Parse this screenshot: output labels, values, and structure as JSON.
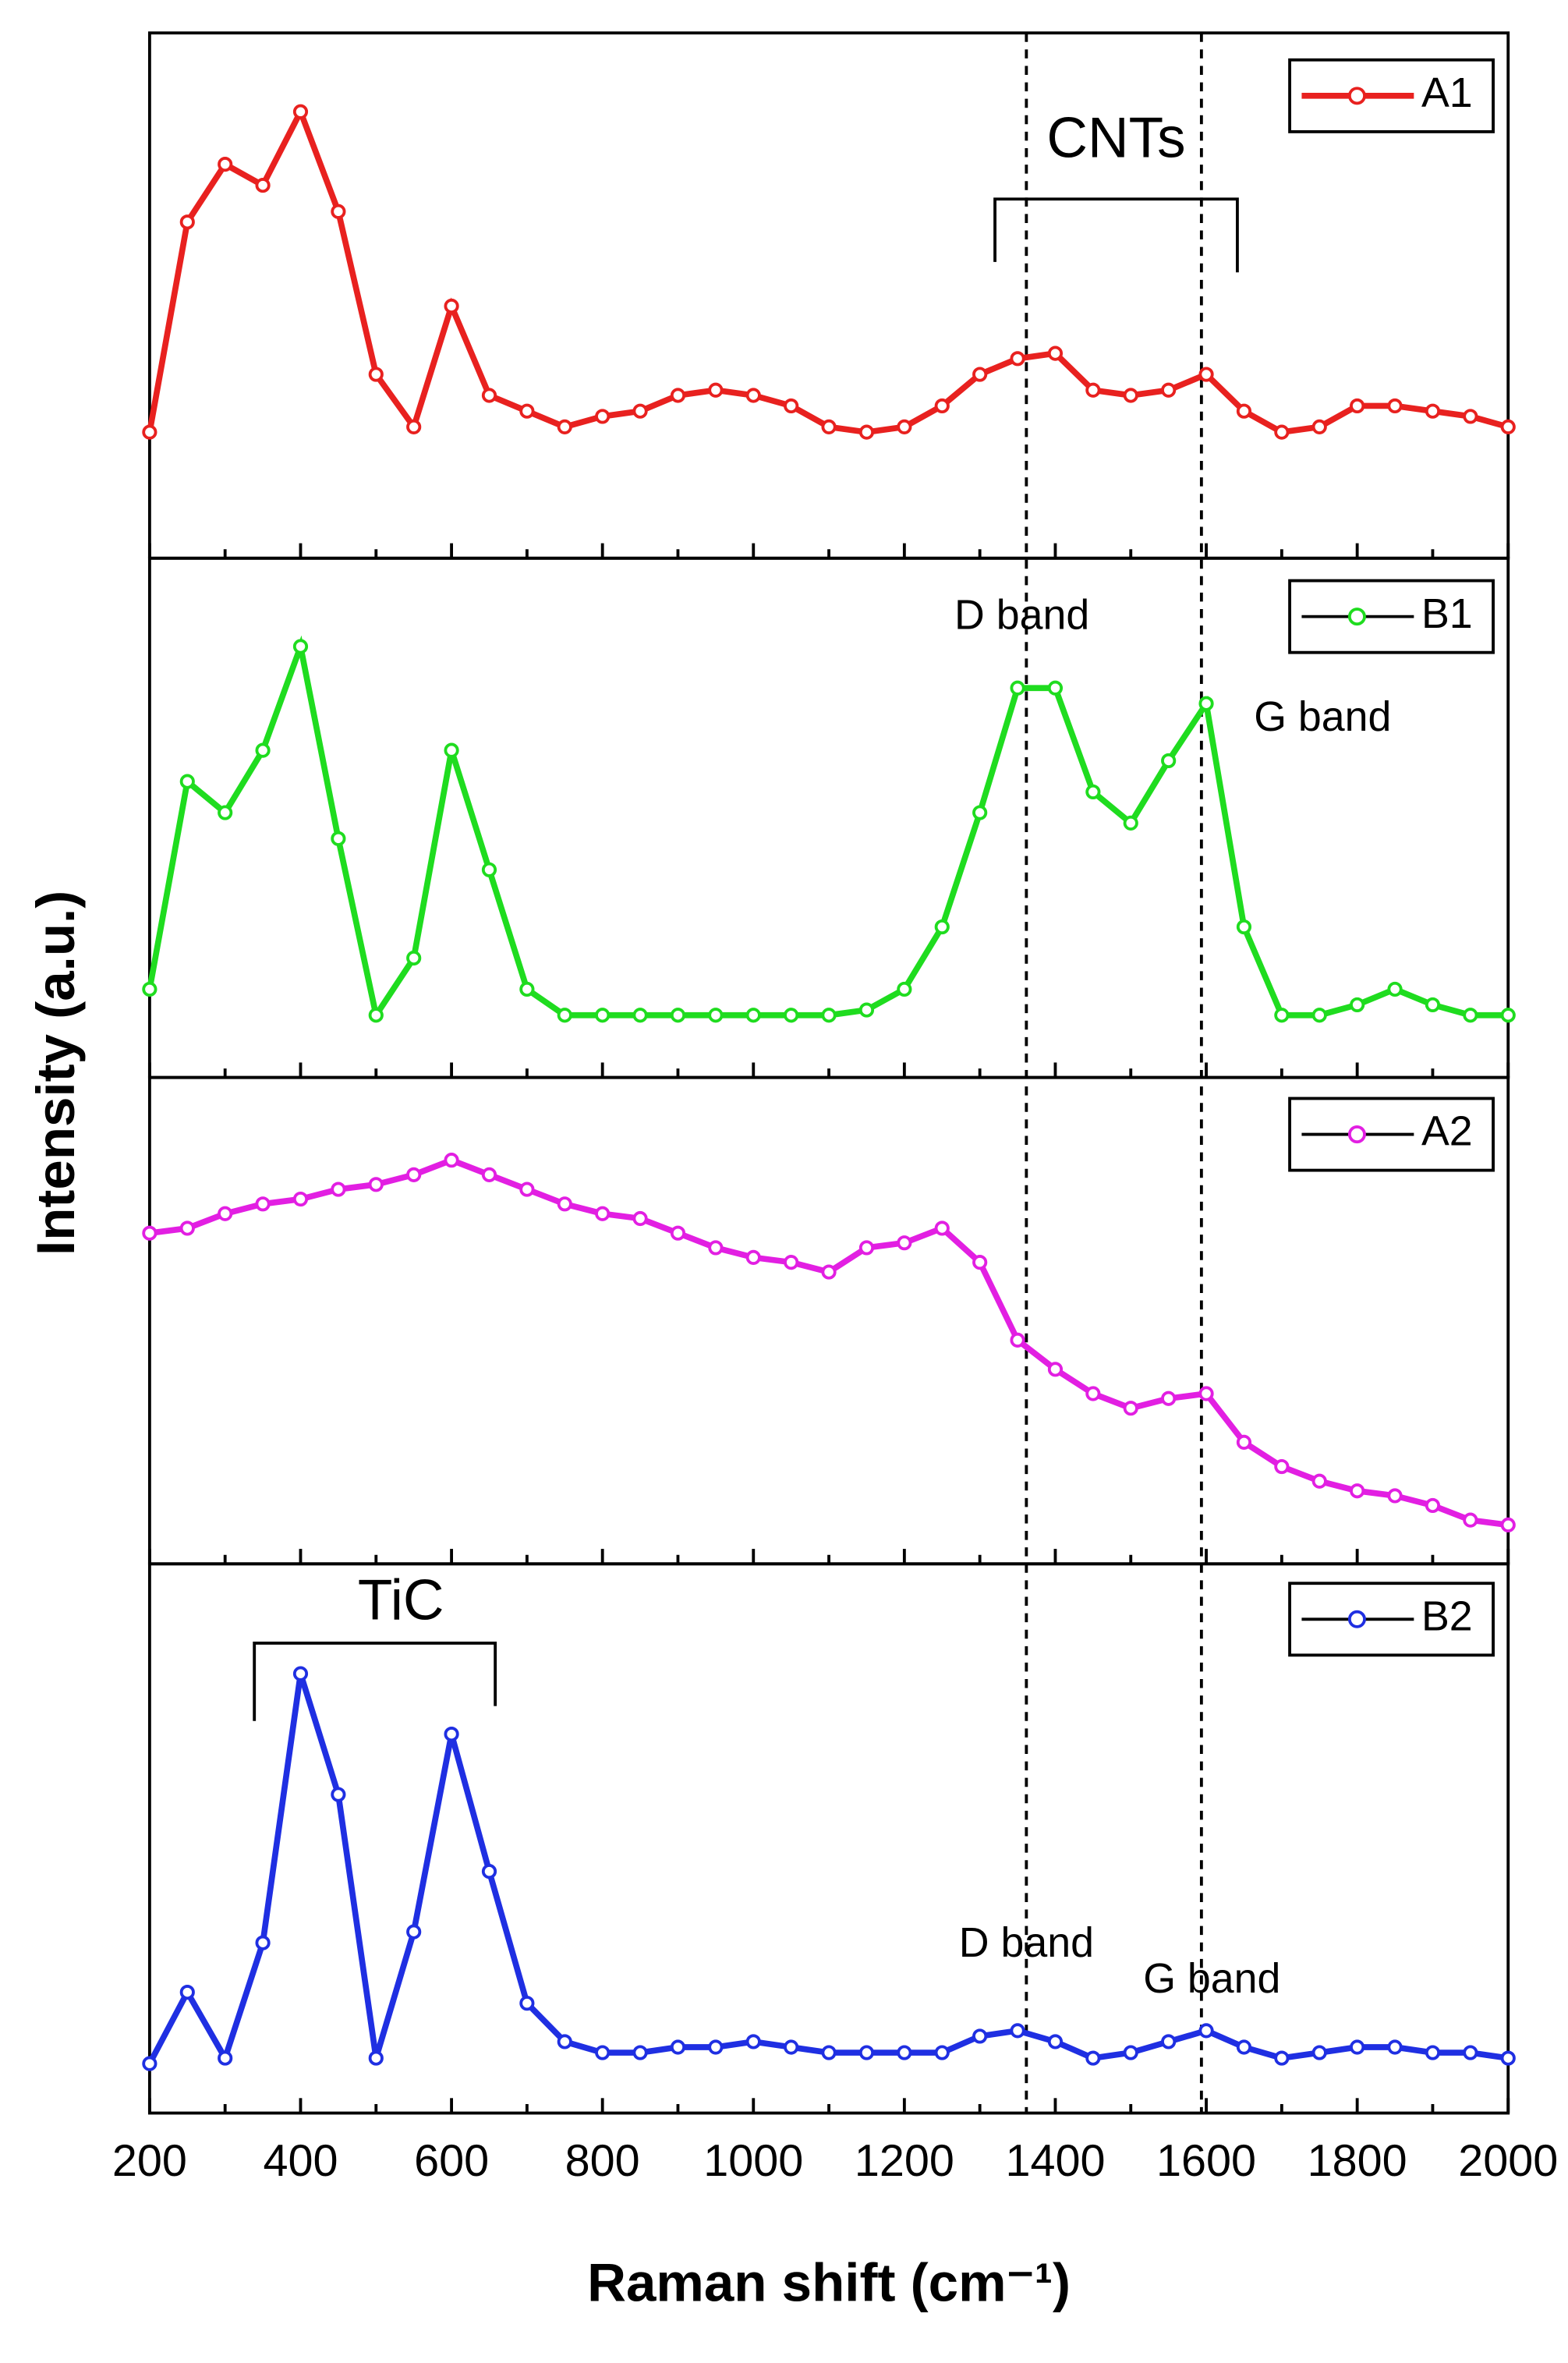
{
  "chart_data": [
    {
      "type": "line",
      "ylabel": "Intensity (a.u.)",
      "xlim": [
        200,
        2000
      ],
      "ylim": [
        0,
        100
      ],
      "annotations": [
        "CNTs"
      ],
      "x": [
        200,
        250,
        300,
        350,
        400,
        450,
        500,
        550,
        600,
        650,
        700,
        750,
        800,
        850,
        900,
        950,
        1000,
        1050,
        1100,
        1150,
        1200,
        1250,
        1300,
        1350,
        1400,
        1450,
        1500,
        1550,
        1600,
        1650,
        1700,
        1750,
        1800,
        1850,
        1900,
        1950,
        2000
      ],
      "series": [
        {
          "name": "A1",
          "color": "#e8211f",
          "values": [
            24,
            64,
            75,
            71,
            85,
            66,
            35,
            25,
            48,
            31,
            28,
            25,
            27,
            28,
            31,
            32,
            31,
            29,
            25,
            24,
            25,
            29,
            35,
            38,
            39,
            32,
            31,
            32,
            35,
            28,
            24,
            25,
            29,
            29,
            28,
            27,
            25
          ]
        }
      ]
    },
    {
      "type": "line",
      "xlim": [
        200,
        2000
      ],
      "ylim": [
        0,
        100
      ],
      "annotations": [
        "D band",
        "G band"
      ],
      "x": [
        200,
        250,
        300,
        350,
        400,
        450,
        500,
        550,
        600,
        650,
        700,
        750,
        800,
        850,
        900,
        950,
        1000,
        1050,
        1100,
        1150,
        1200,
        1250,
        1300,
        1350,
        1400,
        1450,
        1500,
        1550,
        1600,
        1650,
        1700,
        1750,
        1800,
        1850,
        1900,
        1950,
        2000
      ],
      "series": [
        {
          "name": "B1",
          "color": "#1fdc1f",
          "values": [
            17,
            57,
            51,
            63,
            83,
            46,
            12,
            23,
            63,
            40,
            17,
            12,
            12,
            12,
            12,
            12,
            12,
            12,
            12,
            13,
            17,
            29,
            51,
            75,
            75,
            55,
            49,
            61,
            72,
            29,
            12,
            12,
            14,
            17,
            14,
            12,
            12
          ]
        }
      ]
    },
    {
      "type": "line",
      "xlim": [
        200,
        2000
      ],
      "ylim": [
        0,
        100
      ],
      "annotations": [],
      "x": [
        200,
        250,
        300,
        350,
        400,
        450,
        500,
        550,
        600,
        650,
        700,
        750,
        800,
        850,
        900,
        950,
        1000,
        1050,
        1100,
        1150,
        1200,
        1250,
        1300,
        1350,
        1400,
        1450,
        1500,
        1550,
        1600,
        1650,
        1700,
        1750,
        1800,
        1850,
        1900,
        1950,
        2000
      ],
      "series": [
        {
          "name": "A2",
          "color": "#e21fe2",
          "values": [
            68,
            69,
            72,
            74,
            75,
            77,
            78,
            80,
            83,
            80,
            77,
            74,
            72,
            71,
            68,
            65,
            63,
            62,
            60,
            65,
            66,
            69,
            62,
            46,
            40,
            35,
            32,
            34,
            35,
            25,
            20,
            17,
            15,
            14,
            12,
            9,
            8
          ]
        }
      ]
    },
    {
      "type": "line",
      "xlabel": "Raman shift (cm⁻¹)",
      "xlim": [
        200,
        2000
      ],
      "ylim": [
        0,
        100
      ],
      "annotations": [
        "TiC",
        "D band",
        "G band"
      ],
      "xticks": [
        200,
        400,
        600,
        800,
        1000,
        1200,
        1400,
        1600,
        1800,
        2000
      ],
      "x": [
        200,
        250,
        300,
        350,
        400,
        450,
        500,
        550,
        600,
        650,
        700,
        750,
        800,
        850,
        900,
        950,
        1000,
        1050,
        1100,
        1150,
        1200,
        1250,
        1300,
        1350,
        1400,
        1450,
        1500,
        1550,
        1600,
        1650,
        1700,
        1750,
        1800,
        1850,
        1900,
        1950,
        2000
      ],
      "series": [
        {
          "name": "B2",
          "color": "#1f2fe2",
          "values": [
            9,
            22,
            10,
            31,
            80,
            58,
            10,
            33,
            69,
            44,
            20,
            13,
            11,
            11,
            12,
            12,
            13,
            12,
            11,
            11,
            11,
            11,
            14,
            15,
            13,
            10,
            11,
            13,
            15,
            12,
            10,
            11,
            12,
            12,
            11,
            11,
            10
          ]
        }
      ]
    }
  ]
}
